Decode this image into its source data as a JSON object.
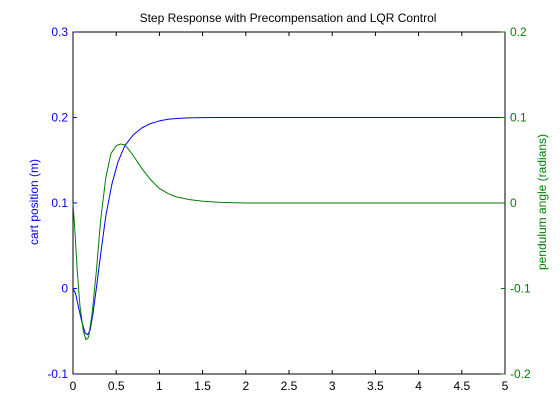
{
  "chart_data": {
    "type": "line",
    "title": "Step Response with Precompensation and LQR Control",
    "xlabel": "",
    "xlim": [
      0,
      5
    ],
    "x_ticks": [
      "0",
      "0.5",
      "1",
      "1.5",
      "2",
      "2.5",
      "3",
      "3.5",
      "4",
      "4.5",
      "5"
    ],
    "grid": false,
    "left_axis": {
      "label": "cart position (m)",
      "ylim": [
        -0.1,
        0.3
      ],
      "ticks": [
        "-0.1",
        "0",
        "0.1",
        "0.2",
        "0.3"
      ],
      "color": "#0000ff"
    },
    "right_axis": {
      "label": "pendulum angle (radians)",
      "ylim": [
        -0.2,
        0.2
      ],
      "ticks": [
        "-0.2",
        "-0.1",
        "0",
        "0.1",
        "0.2"
      ],
      "color": "#007f00"
    },
    "series": [
      {
        "axis": "left",
        "color": "#0000ff",
        "x": [
          0,
          0.03,
          0.06,
          0.1,
          0.14,
          0.17,
          0.2,
          0.23,
          0.27,
          0.32,
          0.38,
          0.45,
          0.52,
          0.6,
          0.7,
          0.8,
          0.9,
          1.0,
          1.1,
          1.2,
          1.3,
          1.4,
          1.5,
          1.7,
          2.0,
          3.0,
          4.0,
          5.0
        ],
        "values": [
          0,
          -0.006,
          -0.02,
          -0.038,
          -0.052,
          -0.054,
          -0.048,
          -0.03,
          0,
          0.04,
          0.085,
          0.122,
          0.148,
          0.167,
          0.18,
          0.188,
          0.193,
          0.196,
          0.198,
          0.1988,
          0.1994,
          0.1997,
          0.1999,
          0.2,
          0.2,
          0.2,
          0.2,
          0.2
        ]
      },
      {
        "axis": "right",
        "color": "#007f00",
        "x": [
          0,
          0.02,
          0.05,
          0.08,
          0.12,
          0.15,
          0.18,
          0.22,
          0.27,
          0.32,
          0.38,
          0.44,
          0.5,
          0.55,
          0.6,
          0.65,
          0.7,
          0.8,
          0.9,
          1.0,
          1.1,
          1.2,
          1.35,
          1.5,
          1.7,
          2.0,
          3.0,
          4.0,
          5.0
        ],
        "values": [
          0,
          -0.03,
          -0.08,
          -0.12,
          -0.15,
          -0.16,
          -0.157,
          -0.13,
          -0.08,
          -0.02,
          0.03,
          0.058,
          0.067,
          0.069,
          0.068,
          0.062,
          0.055,
          0.04,
          0.027,
          0.017,
          0.011,
          0.007,
          0.004,
          0.002,
          0.0008,
          0,
          0,
          0,
          0
        ]
      }
    ]
  }
}
